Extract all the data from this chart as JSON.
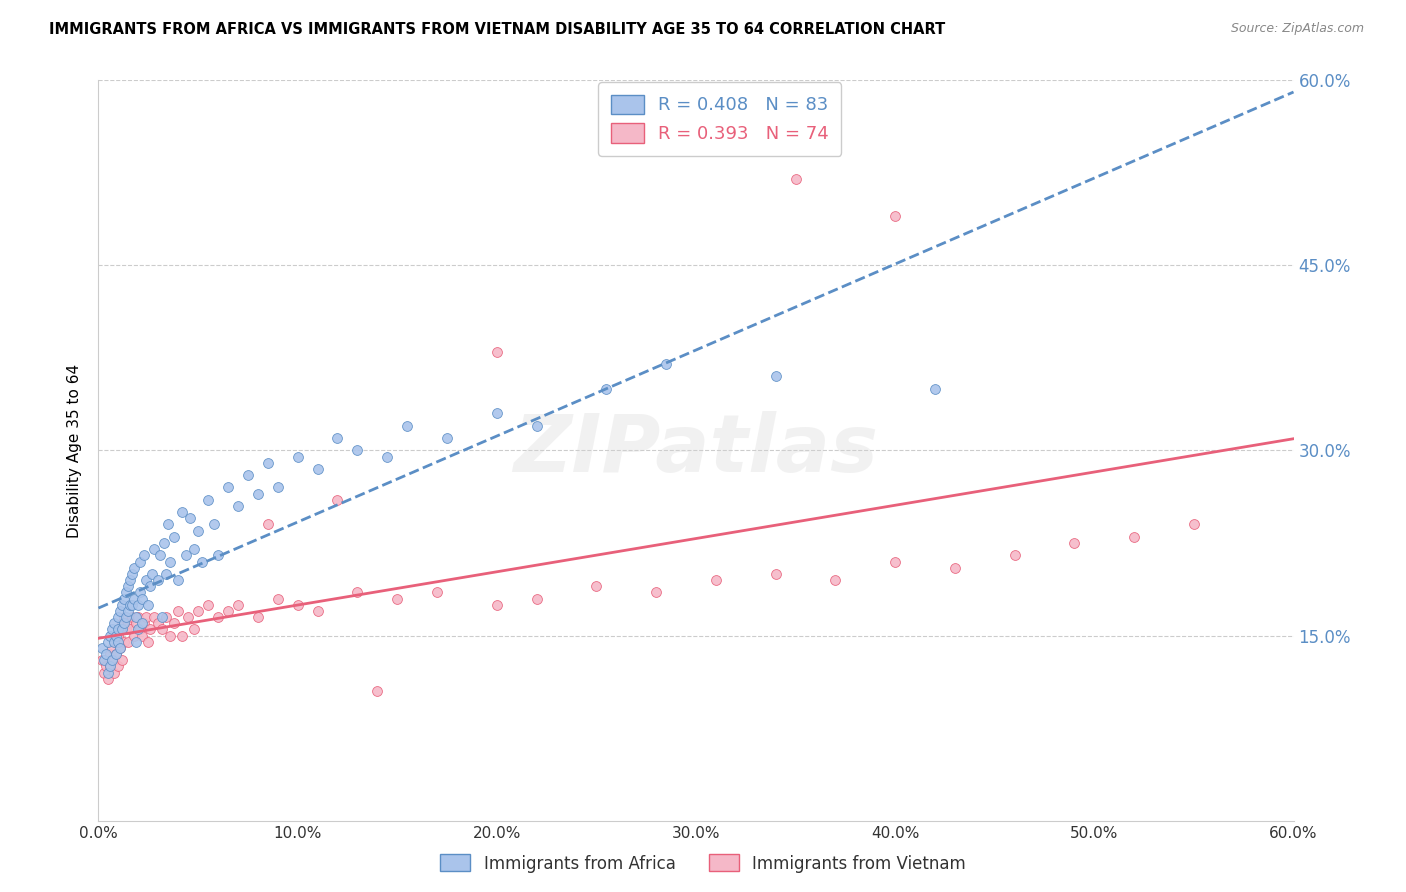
{
  "title": "IMMIGRANTS FROM AFRICA VS IMMIGRANTS FROM VIETNAM DISABILITY AGE 35 TO 64 CORRELATION CHART",
  "source": "Source: ZipAtlas.com",
  "ylabel": "Disability Age 35 to 64",
  "xlim": [
    0.0,
    0.6
  ],
  "ylim": [
    0.0,
    0.6
  ],
  "xticks": [
    0.0,
    0.1,
    0.2,
    0.3,
    0.4,
    0.5,
    0.6
  ],
  "yticks": [
    0.0,
    0.15,
    0.3,
    0.45,
    0.6
  ],
  "ytick_labels": [
    "",
    "15.0%",
    "30.0%",
    "45.0%",
    "60.0%"
  ],
  "xtick_labels": [
    "0.0%",
    "10.0%",
    "20.0%",
    "30.0%",
    "40.0%",
    "50.0%",
    "60.0%"
  ],
  "africa_R": 0.408,
  "africa_N": 83,
  "vietnam_R": 0.393,
  "vietnam_N": 74,
  "africa_color": "#aac4eb",
  "vietnam_color": "#f5b8c8",
  "trendline_africa_color": "#5b8ec5",
  "trendline_vietnam_color": "#e8607a",
  "legend_label_africa": "Immigrants from Africa",
  "legend_label_vietnam": "Immigrants from Vietnam",
  "background_color": "#ffffff",
  "grid_color": "#cccccc",
  "watermark": "ZIPatlas",
  "africa_x": [
    0.002,
    0.003,
    0.004,
    0.005,
    0.005,
    0.006,
    0.006,
    0.007,
    0.007,
    0.008,
    0.008,
    0.009,
    0.009,
    0.01,
    0.01,
    0.01,
    0.011,
    0.011,
    0.012,
    0.012,
    0.013,
    0.013,
    0.014,
    0.014,
    0.015,
    0.015,
    0.016,
    0.016,
    0.017,
    0.017,
    0.018,
    0.018,
    0.019,
    0.019,
    0.02,
    0.02,
    0.021,
    0.021,
    0.022,
    0.022,
    0.023,
    0.024,
    0.025,
    0.026,
    0.027,
    0.028,
    0.03,
    0.031,
    0.032,
    0.033,
    0.034,
    0.035,
    0.036,
    0.038,
    0.04,
    0.042,
    0.044,
    0.046,
    0.048,
    0.05,
    0.052,
    0.055,
    0.058,
    0.06,
    0.065,
    0.07,
    0.075,
    0.08,
    0.085,
    0.09,
    0.1,
    0.11,
    0.12,
    0.13,
    0.145,
    0.155,
    0.175,
    0.2,
    0.22,
    0.255,
    0.285,
    0.34,
    0.42
  ],
  "africa_y": [
    0.14,
    0.13,
    0.135,
    0.145,
    0.12,
    0.15,
    0.125,
    0.155,
    0.13,
    0.145,
    0.16,
    0.135,
    0.15,
    0.165,
    0.145,
    0.155,
    0.17,
    0.14,
    0.175,
    0.155,
    0.18,
    0.16,
    0.185,
    0.165,
    0.19,
    0.17,
    0.195,
    0.175,
    0.2,
    0.175,
    0.205,
    0.18,
    0.145,
    0.165,
    0.155,
    0.175,
    0.21,
    0.185,
    0.16,
    0.18,
    0.215,
    0.195,
    0.175,
    0.19,
    0.2,
    0.22,
    0.195,
    0.215,
    0.165,
    0.225,
    0.2,
    0.24,
    0.21,
    0.23,
    0.195,
    0.25,
    0.215,
    0.245,
    0.22,
    0.235,
    0.21,
    0.26,
    0.24,
    0.215,
    0.27,
    0.255,
    0.28,
    0.265,
    0.29,
    0.27,
    0.295,
    0.285,
    0.31,
    0.3,
    0.295,
    0.32,
    0.31,
    0.33,
    0.32,
    0.35,
    0.37,
    0.36,
    0.35
  ],
  "vietnam_x": [
    0.002,
    0.003,
    0.004,
    0.005,
    0.006,
    0.006,
    0.007,
    0.008,
    0.008,
    0.009,
    0.009,
    0.01,
    0.01,
    0.011,
    0.011,
    0.012,
    0.012,
    0.013,
    0.013,
    0.014,
    0.015,
    0.015,
    0.016,
    0.017,
    0.018,
    0.019,
    0.02,
    0.021,
    0.022,
    0.023,
    0.024,
    0.025,
    0.026,
    0.028,
    0.03,
    0.032,
    0.034,
    0.036,
    0.038,
    0.04,
    0.042,
    0.045,
    0.048,
    0.05,
    0.055,
    0.06,
    0.065,
    0.07,
    0.08,
    0.09,
    0.1,
    0.11,
    0.13,
    0.15,
    0.17,
    0.2,
    0.22,
    0.25,
    0.28,
    0.31,
    0.34,
    0.37,
    0.4,
    0.43,
    0.46,
    0.49,
    0.52,
    0.55,
    0.2,
    0.35,
    0.12,
    0.085,
    0.14,
    0.4
  ],
  "vietnam_y": [
    0.13,
    0.12,
    0.125,
    0.115,
    0.135,
    0.125,
    0.14,
    0.13,
    0.12,
    0.145,
    0.135,
    0.15,
    0.125,
    0.155,
    0.14,
    0.16,
    0.13,
    0.165,
    0.145,
    0.155,
    0.16,
    0.145,
    0.155,
    0.165,
    0.15,
    0.16,
    0.165,
    0.155,
    0.15,
    0.16,
    0.165,
    0.145,
    0.155,
    0.165,
    0.16,
    0.155,
    0.165,
    0.15,
    0.16,
    0.17,
    0.15,
    0.165,
    0.155,
    0.17,
    0.175,
    0.165,
    0.17,
    0.175,
    0.165,
    0.18,
    0.175,
    0.17,
    0.185,
    0.18,
    0.185,
    0.175,
    0.18,
    0.19,
    0.185,
    0.195,
    0.2,
    0.195,
    0.21,
    0.205,
    0.215,
    0.225,
    0.23,
    0.24,
    0.38,
    0.52,
    0.26,
    0.24,
    0.105,
    0.49
  ]
}
